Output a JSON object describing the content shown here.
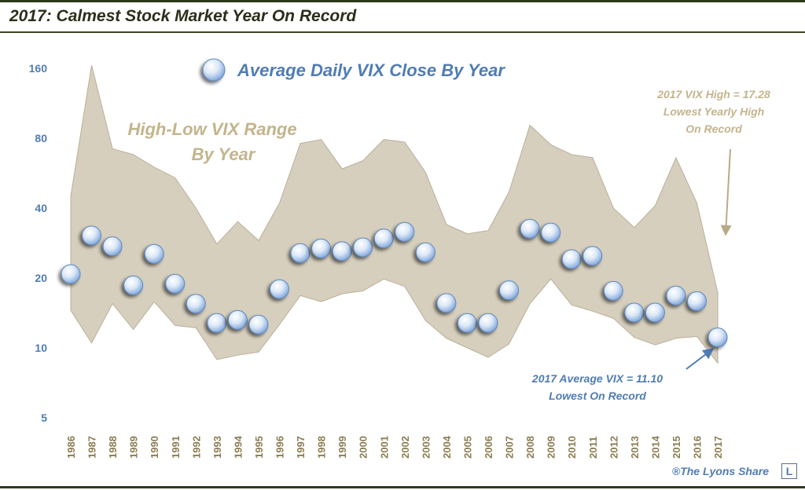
{
  "title": "2017: Calmest Stock Market Year On Record",
  "credit": "®The Lyons Share",
  "logo_letter": "L",
  "colors": {
    "band_fill": "#d6cfbd",
    "band_stroke": "#b9b09a",
    "band_label": "#c3b48c",
    "bubble_edge": "#5e88c2",
    "axis_text": "#4f7cb5",
    "year_text": "#8b7d52",
    "annotation_blue": "#4f7cb5",
    "annotation_tan": "#c3b48c",
    "title_text": "#2a2f1a"
  },
  "chart_data": {
    "type": "area",
    "y_scale": "log",
    "ylim": [
      5,
      165
    ],
    "yticks": [
      160,
      80,
      40,
      20,
      10,
      5
    ],
    "grid": false,
    "categories": [
      "1986",
      "1987",
      "1988",
      "1989",
      "1990",
      "1991",
      "1992",
      "1993",
      "1994",
      "1995",
      "1996",
      "1997",
      "1998",
      "1999",
      "2000",
      "2001",
      "2002",
      "2003",
      "2004",
      "2005",
      "2006",
      "2007",
      "2008",
      "2009",
      "2010",
      "2011",
      "2012",
      "2013",
      "2014",
      "2015",
      "2016",
      "2017"
    ],
    "series": [
      {
        "name": "High-Low VIX Range By Year",
        "kind": "band",
        "high": [
          45,
          165,
          72,
          68,
          60,
          54,
          40,
          28,
          35,
          29,
          42,
          76,
          79,
          59,
          64,
          79,
          77,
          57,
          34,
          31,
          32,
          47,
          91,
          75,
          68,
          66,
          40,
          33,
          41,
          66,
          42,
          17.28
        ],
        "low": [
          14.5,
          10.5,
          15.5,
          12,
          15.8,
          12.5,
          12.2,
          8.9,
          9.3,
          9.6,
          12.6,
          16.8,
          15.8,
          17.1,
          17.6,
          19.8,
          18.4,
          13.1,
          11,
          10,
          9.1,
          10.4,
          15.5,
          19.8,
          15.3,
          14.4,
          13.4,
          11.1,
          10.3,
          11,
          11.2,
          8.6
        ]
      },
      {
        "name": "Average Daily VIX Close By Year",
        "kind": "bubbles",
        "values": [
          20.8,
          30.5,
          27.4,
          18.6,
          25.4,
          18.9,
          15.5,
          12.8,
          13.2,
          12.6,
          17.9,
          25.6,
          26.8,
          26.1,
          27.1,
          29.6,
          31.6,
          25.8,
          15.6,
          12.8,
          12.8,
          17.7,
          32.6,
          31.4,
          24.1,
          24.9,
          17.6,
          14.2,
          14.2,
          16.8,
          15.9,
          11.1
        ]
      }
    ],
    "legend": {
      "average_label": "Average Daily VIX Close By Year",
      "range_label_line1": "High-Low VIX Range",
      "range_label_line2": "By Year",
      "placement": "top-center"
    },
    "annotations": {
      "high": {
        "line1": "2017 VIX High = 17.28",
        "line2": "Lowest Yearly High",
        "line3": "On Record"
      },
      "avg": {
        "line1": "2017 Average  VIX = 11.10",
        "line2": "Lowest On Record"
      }
    }
  }
}
